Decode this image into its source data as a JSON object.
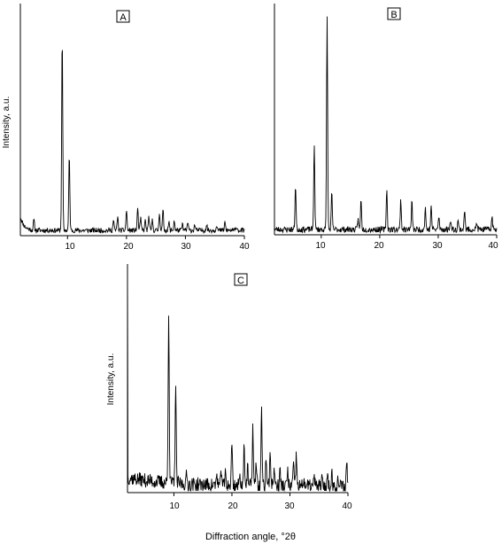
{
  "figure": {
    "xlabel": "Diffraction angle, °2θ"
  },
  "chart_data": [
    {
      "type": "line",
      "panel_label": "A",
      "ylabel": "Intensity, a.u.",
      "xlim": [
        2,
        40
      ],
      "ylim": [
        0,
        100
      ],
      "xticks": [
        "10",
        "20",
        "30",
        "40"
      ],
      "series": [
        {
          "peaks": [
            {
              "x": 4.3,
              "y": 5
            },
            {
              "x": 9.1,
              "y": 96
            },
            {
              "x": 10.3,
              "y": 37
            },
            {
              "x": 17.8,
              "y": 5
            },
            {
              "x": 18.5,
              "y": 7
            },
            {
              "x": 20.0,
              "y": 10
            },
            {
              "x": 21.9,
              "y": 11
            },
            {
              "x": 22.4,
              "y": 6
            },
            {
              "x": 23.2,
              "y": 5
            },
            {
              "x": 23.8,
              "y": 7
            },
            {
              "x": 24.4,
              "y": 5
            },
            {
              "x": 25.6,
              "y": 9
            },
            {
              "x": 26.2,
              "y": 10
            },
            {
              "x": 27.2,
              "y": 4
            },
            {
              "x": 28.1,
              "y": 5
            },
            {
              "x": 29.5,
              "y": 3
            },
            {
              "x": 30.4,
              "y": 4
            },
            {
              "x": 31.6,
              "y": 3
            },
            {
              "x": 33.6,
              "y": 3
            },
            {
              "x": 35.3,
              "y": 3
            },
            {
              "x": 36.7,
              "y": 4
            },
            {
              "x": 38.7,
              "y": 2
            }
          ]
        }
      ]
    },
    {
      "type": "line",
      "panel_label": "B",
      "ylabel": "",
      "xlim": [
        2,
        40
      ],
      "ylim": [
        0,
        100
      ],
      "xticks": [
        "10",
        "20",
        "30",
        "40"
      ],
      "series": [
        {
          "peaks": [
            {
              "x": 5.6,
              "y": 21
            },
            {
              "x": 8.8,
              "y": 40
            },
            {
              "x": 11.0,
              "y": 100
            },
            {
              "x": 11.8,
              "y": 17
            },
            {
              "x": 16.3,
              "y": 5
            },
            {
              "x": 16.8,
              "y": 14
            },
            {
              "x": 21.2,
              "y": 19
            },
            {
              "x": 23.6,
              "y": 14
            },
            {
              "x": 25.5,
              "y": 13
            },
            {
              "x": 27.8,
              "y": 10
            },
            {
              "x": 28.8,
              "y": 11
            },
            {
              "x": 30.1,
              "y": 6
            },
            {
              "x": 32.1,
              "y": 5
            },
            {
              "x": 33.4,
              "y": 4
            },
            {
              "x": 34.5,
              "y": 9
            },
            {
              "x": 36.6,
              "y": 3
            },
            {
              "x": 39.2,
              "y": 6
            }
          ]
        }
      ]
    },
    {
      "type": "line",
      "panel_label": "C",
      "ylabel": "Intensity, a.u.",
      "xlim": [
        2,
        40
      ],
      "ylim": [
        0,
        100
      ],
      "xticks": [
        "10",
        "20",
        "30",
        "40"
      ],
      "series": [
        {
          "peaks": [
            {
              "x": 9.1,
              "y": 78
            },
            {
              "x": 10.3,
              "y": 44
            },
            {
              "x": 12.2,
              "y": 4
            },
            {
              "x": 17.4,
              "y": 5
            },
            {
              "x": 18.2,
              "y": 7
            },
            {
              "x": 18.9,
              "y": 6
            },
            {
              "x": 20.0,
              "y": 20
            },
            {
              "x": 21.4,
              "y": 5
            },
            {
              "x": 22.1,
              "y": 20
            },
            {
              "x": 22.7,
              "y": 8
            },
            {
              "x": 23.6,
              "y": 27
            },
            {
              "x": 24.2,
              "y": 11
            },
            {
              "x": 25.1,
              "y": 35
            },
            {
              "x": 25.9,
              "y": 13
            },
            {
              "x": 26.6,
              "y": 17
            },
            {
              "x": 27.3,
              "y": 9
            },
            {
              "x": 28.3,
              "y": 7
            },
            {
              "x": 29.6,
              "y": 7
            },
            {
              "x": 30.6,
              "y": 10
            },
            {
              "x": 31.1,
              "y": 14
            },
            {
              "x": 32.4,
              "y": 4
            },
            {
              "x": 34.2,
              "y": 4
            },
            {
              "x": 35.5,
              "y": 3
            },
            {
              "x": 36.5,
              "y": 5
            },
            {
              "x": 37.2,
              "y": 6
            },
            {
              "x": 38.3,
              "y": 3
            },
            {
              "x": 39.8,
              "y": 11
            }
          ]
        }
      ]
    }
  ]
}
